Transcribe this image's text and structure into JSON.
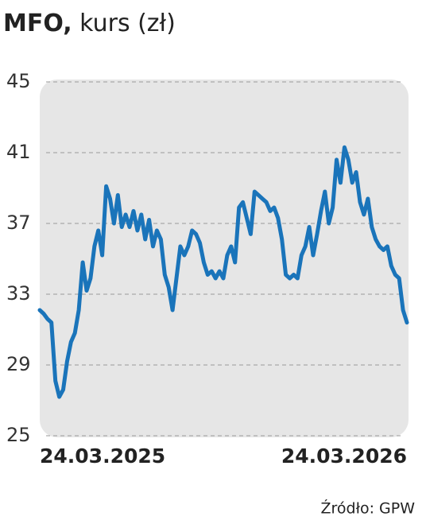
{
  "chart_data": {
    "type": "line",
    "title_bold": "MFO,",
    "title_rest": "kurs (zł)",
    "source": "Źródło: GPW",
    "color": "#1a74ba",
    "categories": [
      "24.03.2025",
      null,
      null,
      null,
      null,
      null,
      null,
      null,
      null,
      null,
      null,
      null,
      null,
      null,
      null,
      null,
      null,
      null,
      null,
      null,
      null,
      null,
      null,
      null,
      null,
      null,
      null,
      null,
      null,
      null,
      null,
      null,
      null,
      null,
      null,
      null,
      null,
      null,
      null,
      null,
      null,
      null,
      null,
      null,
      null,
      null,
      null,
      null,
      null,
      null,
      null,
      null,
      null,
      null,
      null,
      null,
      null,
      null,
      null,
      null,
      null,
      null,
      null,
      null,
      null,
      null,
      null,
      null,
      null,
      null,
      null,
      null,
      null,
      null,
      null,
      null,
      null,
      null,
      null,
      null,
      null,
      null,
      null,
      null,
      null,
      null,
      null,
      null,
      null,
      null,
      null,
      null,
      null,
      null,
      "24.03.2026"
    ],
    "values": [
      32.1,
      31.9,
      31.6,
      31.4,
      28.1,
      27.2,
      27.6,
      29.2,
      30.3,
      30.8,
      32.1,
      34.8,
      33.2,
      33.9,
      35.7,
      36.6,
      35.2,
      39.1,
      38.4,
      37.0,
      38.6,
      36.8,
      37.5,
      36.8,
      37.7,
      36.6,
      37.5,
      36.1,
      37.2,
      35.7,
      36.6,
      36.1,
      34.1,
      33.4,
      32.1,
      33.9,
      35.7,
      35.2,
      35.7,
      36.6,
      36.4,
      35.9,
      34.8,
      34.1,
      34.3,
      33.9,
      34.3,
      33.9,
      35.2,
      35.7,
      34.8,
      37.9,
      38.2,
      37.3,
      36.4,
      38.8,
      38.6,
      38.4,
      38.2,
      37.7,
      37.9,
      37.3,
      36.1,
      34.1,
      33.9,
      34.1,
      33.9,
      35.2,
      35.7,
      36.8,
      35.2,
      36.4,
      37.7,
      38.8,
      37.0,
      37.9,
      40.6,
      39.3,
      41.3,
      40.6,
      39.3,
      39.9,
      38.2,
      37.5,
      38.4,
      36.8,
      36.1,
      35.7,
      35.5,
      35.7,
      34.6,
      34.1,
      33.9,
      32.1,
      31.4
    ],
    "ylim": [
      25,
      45
    ],
    "yticks": [
      25,
      29,
      33,
      37,
      41,
      45
    ],
    "grid": true
  }
}
